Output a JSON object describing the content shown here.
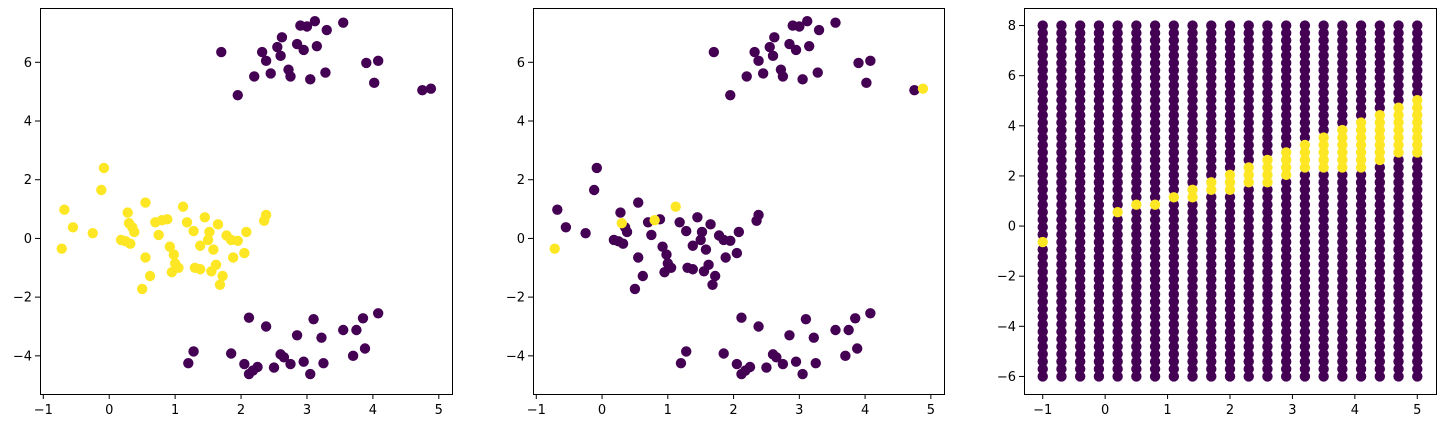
{
  "colors": {
    "class_0": "#440154",
    "class_1": "#fde725"
  },
  "chart_data": [
    {
      "type": "scatter",
      "xlim": [
        -1.05,
        5.2
      ],
      "ylim": [
        -5.3,
        7.85
      ],
      "xticks": [
        -1,
        0,
        1,
        2,
        3,
        4,
        5
      ],
      "yticks": [
        -4,
        -2,
        0,
        2,
        4,
        6
      ],
      "grid": false,
      "points": [
        {
          "x": 1.7,
          "y": 6.35,
          "c": 0
        },
        {
          "x": 1.95,
          "y": 4.88,
          "c": 0
        },
        {
          "x": 2.2,
          "y": 5.52,
          "c": 0
        },
        {
          "x": 2.32,
          "y": 6.35,
          "c": 0
        },
        {
          "x": 2.38,
          "y": 6.05,
          "c": 0
        },
        {
          "x": 2.45,
          "y": 5.62,
          "c": 0
        },
        {
          "x": 2.55,
          "y": 6.52,
          "c": 0
        },
        {
          "x": 2.6,
          "y": 6.22,
          "c": 0
        },
        {
          "x": 2.62,
          "y": 6.85,
          "c": 0
        },
        {
          "x": 2.72,
          "y": 5.75,
          "c": 0
        },
        {
          "x": 2.75,
          "y": 5.52,
          "c": 0
        },
        {
          "x": 2.85,
          "y": 6.62,
          "c": 0
        },
        {
          "x": 2.9,
          "y": 7.25,
          "c": 0
        },
        {
          "x": 2.95,
          "y": 6.42,
          "c": 0
        },
        {
          "x": 3.0,
          "y": 7.22,
          "c": 0
        },
        {
          "x": 3.05,
          "y": 5.42,
          "c": 0
        },
        {
          "x": 3.12,
          "y": 7.4,
          "c": 0
        },
        {
          "x": 3.15,
          "y": 6.55,
          "c": 0
        },
        {
          "x": 3.28,
          "y": 5.65,
          "c": 0
        },
        {
          "x": 3.3,
          "y": 7.1,
          "c": 0
        },
        {
          "x": 3.55,
          "y": 7.35,
          "c": 0
        },
        {
          "x": 3.9,
          "y": 5.98,
          "c": 0
        },
        {
          "x": 4.02,
          "y": 5.3,
          "c": 0
        },
        {
          "x": 4.08,
          "y": 6.05,
          "c": 0
        },
        {
          "x": 4.75,
          "y": 5.05,
          "c": 0
        },
        {
          "x": 4.88,
          "y": 5.1,
          "c": 0
        },
        {
          "x": 1.2,
          "y": -4.25,
          "c": 0
        },
        {
          "x": 1.28,
          "y": -3.85,
          "c": 0
        },
        {
          "x": 1.85,
          "y": -3.92,
          "c": 0
        },
        {
          "x": 2.05,
          "y": -4.28,
          "c": 0
        },
        {
          "x": 2.12,
          "y": -2.7,
          "c": 0
        },
        {
          "x": 2.12,
          "y": -4.62,
          "c": 0
        },
        {
          "x": 2.18,
          "y": -4.5,
          "c": 0
        },
        {
          "x": 2.25,
          "y": -4.38,
          "c": 0
        },
        {
          "x": 2.38,
          "y": -3.0,
          "c": 0
        },
        {
          "x": 2.5,
          "y": -4.4,
          "c": 0
        },
        {
          "x": 2.6,
          "y": -3.95,
          "c": 0
        },
        {
          "x": 2.65,
          "y": -4.05,
          "c": 0
        },
        {
          "x": 2.75,
          "y": -4.28,
          "c": 0
        },
        {
          "x": 2.85,
          "y": -3.3,
          "c": 0
        },
        {
          "x": 2.95,
          "y": -4.2,
          "c": 0
        },
        {
          "x": 3.05,
          "y": -4.62,
          "c": 0
        },
        {
          "x": 3.1,
          "y": -2.75,
          "c": 0
        },
        {
          "x": 3.22,
          "y": -3.38,
          "c": 0
        },
        {
          "x": 3.25,
          "y": -4.25,
          "c": 0
        },
        {
          "x": 3.55,
          "y": -3.12,
          "c": 0
        },
        {
          "x": 3.7,
          "y": -4.0,
          "c": 0
        },
        {
          "x": 3.75,
          "y": -3.12,
          "c": 0
        },
        {
          "x": 3.85,
          "y": -2.72,
          "c": 0
        },
        {
          "x": 3.88,
          "y": -3.75,
          "c": 0
        },
        {
          "x": 4.08,
          "y": -2.55,
          "c": 0
        },
        {
          "x": -0.72,
          "y": -0.35,
          "c": 1
        },
        {
          "x": -0.68,
          "y": 0.98,
          "c": 1
        },
        {
          "x": -0.55,
          "y": 0.38,
          "c": 1
        },
        {
          "x": -0.25,
          "y": 0.18,
          "c": 1
        },
        {
          "x": -0.12,
          "y": 1.65,
          "c": 1
        },
        {
          "x": -0.08,
          "y": 2.4,
          "c": 1
        },
        {
          "x": 0.18,
          "y": -0.05,
          "c": 1
        },
        {
          "x": 0.25,
          "y": -0.1,
          "c": 1
        },
        {
          "x": 0.28,
          "y": 0.88,
          "c": 1
        },
        {
          "x": 0.3,
          "y": 0.52,
          "c": 1
        },
        {
          "x": 0.32,
          "y": -0.18,
          "c": 1
        },
        {
          "x": 0.35,
          "y": 0.38,
          "c": 1
        },
        {
          "x": 0.38,
          "y": 0.22,
          "c": 1
        },
        {
          "x": 0.5,
          "y": -1.72,
          "c": 1
        },
        {
          "x": 0.55,
          "y": -0.65,
          "c": 1
        },
        {
          "x": 0.55,
          "y": 1.22,
          "c": 1
        },
        {
          "x": 0.62,
          "y": -1.28,
          "c": 1
        },
        {
          "x": 0.7,
          "y": 0.55,
          "c": 1
        },
        {
          "x": 0.75,
          "y": 0.12,
          "c": 1
        },
        {
          "x": 0.8,
          "y": 0.62,
          "c": 1
        },
        {
          "x": 0.88,
          "y": 0.65,
          "c": 1
        },
        {
          "x": 0.92,
          "y": -0.28,
          "c": 1
        },
        {
          "x": 0.95,
          "y": -1.15,
          "c": 1
        },
        {
          "x": 0.98,
          "y": -0.55,
          "c": 1
        },
        {
          "x": 1.0,
          "y": -0.85,
          "c": 1
        },
        {
          "x": 1.05,
          "y": -1.0,
          "c": 1
        },
        {
          "x": 1.12,
          "y": 1.08,
          "c": 1
        },
        {
          "x": 1.18,
          "y": 0.55,
          "c": 1
        },
        {
          "x": 1.28,
          "y": 0.25,
          "c": 1
        },
        {
          "x": 1.3,
          "y": -1.0,
          "c": 1
        },
        {
          "x": 1.38,
          "y": -1.05,
          "c": 1
        },
        {
          "x": 1.38,
          "y": -0.25,
          "c": 1
        },
        {
          "x": 1.45,
          "y": 0.72,
          "c": 1
        },
        {
          "x": 1.5,
          "y": -0.05,
          "c": 1
        },
        {
          "x": 1.52,
          "y": 0.22,
          "c": 1
        },
        {
          "x": 1.55,
          "y": -1.12,
          "c": 1
        },
        {
          "x": 1.58,
          "y": -0.38,
          "c": 1
        },
        {
          "x": 1.62,
          "y": -0.9,
          "c": 1
        },
        {
          "x": 1.65,
          "y": 0.48,
          "c": 1
        },
        {
          "x": 1.68,
          "y": -1.58,
          "c": 1
        },
        {
          "x": 1.72,
          "y": -1.28,
          "c": 1
        },
        {
          "x": 1.78,
          "y": 0.1,
          "c": 1
        },
        {
          "x": 1.85,
          "y": -0.05,
          "c": 1
        },
        {
          "x": 1.88,
          "y": -0.65,
          "c": 1
        },
        {
          "x": 1.95,
          "y": -0.08,
          "c": 1
        },
        {
          "x": 2.05,
          "y": -0.5,
          "c": 1
        },
        {
          "x": 2.08,
          "y": 0.22,
          "c": 1
        },
        {
          "x": 2.35,
          "y": 0.6,
          "c": 1
        },
        {
          "x": 2.38,
          "y": 0.8,
          "c": 1
        }
      ]
    },
    {
      "type": "scatter",
      "xlim": [
        -1.05,
        5.2
      ],
      "ylim": [
        -5.3,
        7.85
      ],
      "xticks": [
        -1,
        0,
        1,
        2,
        3,
        4,
        5
      ],
      "yticks": [
        -4,
        -2,
        0,
        2,
        4,
        6
      ],
      "grid": false,
      "points": [
        {
          "x": 1.7,
          "y": 6.35,
          "c": 0
        },
        {
          "x": 1.95,
          "y": 4.88,
          "c": 0
        },
        {
          "x": 2.2,
          "y": 5.52,
          "c": 0
        },
        {
          "x": 2.32,
          "y": 6.35,
          "c": 0
        },
        {
          "x": 2.38,
          "y": 6.05,
          "c": 0
        },
        {
          "x": 2.45,
          "y": 5.62,
          "c": 0
        },
        {
          "x": 2.55,
          "y": 6.52,
          "c": 0
        },
        {
          "x": 2.6,
          "y": 6.22,
          "c": 0
        },
        {
          "x": 2.62,
          "y": 6.85,
          "c": 0
        },
        {
          "x": 2.72,
          "y": 5.75,
          "c": 0
        },
        {
          "x": 2.75,
          "y": 5.52,
          "c": 0
        },
        {
          "x": 2.85,
          "y": 6.62,
          "c": 0
        },
        {
          "x": 2.9,
          "y": 7.25,
          "c": 0
        },
        {
          "x": 2.95,
          "y": 6.42,
          "c": 0
        },
        {
          "x": 3.0,
          "y": 7.22,
          "c": 0
        },
        {
          "x": 3.05,
          "y": 5.42,
          "c": 0
        },
        {
          "x": 3.12,
          "y": 7.4,
          "c": 0
        },
        {
          "x": 3.15,
          "y": 6.55,
          "c": 0
        },
        {
          "x": 3.28,
          "y": 5.65,
          "c": 0
        },
        {
          "x": 3.3,
          "y": 7.1,
          "c": 0
        },
        {
          "x": 3.55,
          "y": 7.35,
          "c": 0
        },
        {
          "x": 3.9,
          "y": 5.98,
          "c": 0
        },
        {
          "x": 4.02,
          "y": 5.3,
          "c": 0
        },
        {
          "x": 4.08,
          "y": 6.05,
          "c": 0
        },
        {
          "x": 4.75,
          "y": 5.05,
          "c": 0
        },
        {
          "x": 4.88,
          "y": 5.1,
          "c": 1
        },
        {
          "x": 1.2,
          "y": -4.25,
          "c": 0
        },
        {
          "x": 1.28,
          "y": -3.85,
          "c": 0
        },
        {
          "x": 1.85,
          "y": -3.92,
          "c": 0
        },
        {
          "x": 2.05,
          "y": -4.28,
          "c": 0
        },
        {
          "x": 2.12,
          "y": -2.7,
          "c": 0
        },
        {
          "x": 2.12,
          "y": -4.62,
          "c": 0
        },
        {
          "x": 2.18,
          "y": -4.5,
          "c": 0
        },
        {
          "x": 2.25,
          "y": -4.38,
          "c": 0
        },
        {
          "x": 2.38,
          "y": -3.0,
          "c": 0
        },
        {
          "x": 2.5,
          "y": -4.4,
          "c": 0
        },
        {
          "x": 2.6,
          "y": -3.95,
          "c": 0
        },
        {
          "x": 2.65,
          "y": -4.05,
          "c": 0
        },
        {
          "x": 2.75,
          "y": -4.28,
          "c": 0
        },
        {
          "x": 2.85,
          "y": -3.3,
          "c": 0
        },
        {
          "x": 2.95,
          "y": -4.2,
          "c": 0
        },
        {
          "x": 3.05,
          "y": -4.62,
          "c": 0
        },
        {
          "x": 3.1,
          "y": -2.75,
          "c": 0
        },
        {
          "x": 3.22,
          "y": -3.38,
          "c": 0
        },
        {
          "x": 3.25,
          "y": -4.25,
          "c": 0
        },
        {
          "x": 3.55,
          "y": -3.12,
          "c": 0
        },
        {
          "x": 3.7,
          "y": -4.0,
          "c": 0
        },
        {
          "x": 3.75,
          "y": -3.12,
          "c": 0
        },
        {
          "x": 3.85,
          "y": -2.72,
          "c": 0
        },
        {
          "x": 3.88,
          "y": -3.75,
          "c": 0
        },
        {
          "x": 4.08,
          "y": -2.55,
          "c": 0
        },
        {
          "x": -0.72,
          "y": -0.35,
          "c": 1
        },
        {
          "x": -0.68,
          "y": 0.98,
          "c": 0
        },
        {
          "x": -0.55,
          "y": 0.38,
          "c": 0
        },
        {
          "x": -0.25,
          "y": 0.18,
          "c": 0
        },
        {
          "x": -0.12,
          "y": 1.65,
          "c": 0
        },
        {
          "x": -0.08,
          "y": 2.4,
          "c": 0
        },
        {
          "x": 0.18,
          "y": -0.05,
          "c": 0
        },
        {
          "x": 0.25,
          "y": -0.1,
          "c": 0
        },
        {
          "x": 0.28,
          "y": 0.88,
          "c": 0
        },
        {
          "x": 0.3,
          "y": 0.52,
          "c": 1
        },
        {
          "x": 0.32,
          "y": -0.18,
          "c": 0
        },
        {
          "x": 0.35,
          "y": 0.38,
          "c": 0
        },
        {
          "x": 0.38,
          "y": 0.22,
          "c": 0
        },
        {
          "x": 0.5,
          "y": -1.72,
          "c": 0
        },
        {
          "x": 0.55,
          "y": -0.65,
          "c": 0
        },
        {
          "x": 0.55,
          "y": 1.22,
          "c": 0
        },
        {
          "x": 0.62,
          "y": -1.28,
          "c": 0
        },
        {
          "x": 0.7,
          "y": 0.55,
          "c": 0
        },
        {
          "x": 0.75,
          "y": 0.12,
          "c": 0
        },
        {
          "x": 0.8,
          "y": 0.62,
          "c": 1
        },
        {
          "x": 0.88,
          "y": 0.65,
          "c": 0
        },
        {
          "x": 0.92,
          "y": -0.28,
          "c": 0
        },
        {
          "x": 0.95,
          "y": -1.15,
          "c": 0
        },
        {
          "x": 0.98,
          "y": -0.55,
          "c": 0
        },
        {
          "x": 1.0,
          "y": -0.85,
          "c": 0
        },
        {
          "x": 1.05,
          "y": -1.0,
          "c": 0
        },
        {
          "x": 1.12,
          "y": 1.08,
          "c": 1
        },
        {
          "x": 1.18,
          "y": 0.55,
          "c": 0
        },
        {
          "x": 1.28,
          "y": 0.25,
          "c": 0
        },
        {
          "x": 1.3,
          "y": -1.0,
          "c": 0
        },
        {
          "x": 1.38,
          "y": -1.05,
          "c": 0
        },
        {
          "x": 1.38,
          "y": -0.25,
          "c": 0
        },
        {
          "x": 1.45,
          "y": 0.72,
          "c": 0
        },
        {
          "x": 1.5,
          "y": -0.05,
          "c": 0
        },
        {
          "x": 1.52,
          "y": 0.22,
          "c": 0
        },
        {
          "x": 1.55,
          "y": -1.12,
          "c": 0
        },
        {
          "x": 1.58,
          "y": -0.38,
          "c": 0
        },
        {
          "x": 1.62,
          "y": -0.9,
          "c": 0
        },
        {
          "x": 1.65,
          "y": 0.48,
          "c": 0
        },
        {
          "x": 1.68,
          "y": -1.58,
          "c": 0
        },
        {
          "x": 1.72,
          "y": -1.28,
          "c": 0
        },
        {
          "x": 1.78,
          "y": 0.1,
          "c": 0
        },
        {
          "x": 1.85,
          "y": -0.05,
          "c": 0
        },
        {
          "x": 1.88,
          "y": -0.65,
          "c": 0
        },
        {
          "x": 1.95,
          "y": -0.08,
          "c": 0
        },
        {
          "x": 2.05,
          "y": -0.5,
          "c": 0
        },
        {
          "x": 2.08,
          "y": 0.22,
          "c": 0
        },
        {
          "x": 2.35,
          "y": 0.6,
          "c": 0
        },
        {
          "x": 2.38,
          "y": 0.8,
          "c": 0
        }
      ]
    },
    {
      "type": "scatter",
      "xlim": [
        -1.3,
        5.3
      ],
      "ylim": [
        -6.7,
        8.7
      ],
      "xticks": [
        -1,
        0,
        1,
        2,
        3,
        4,
        5
      ],
      "yticks": [
        -6,
        -4,
        -2,
        0,
        2,
        4,
        6,
        8
      ],
      "grid": false,
      "grid_points": {
        "x": [
          -1.0,
          -0.7,
          -0.4,
          -0.1,
          0.2,
          0.5,
          0.8,
          1.1,
          1.4,
          1.7,
          2.0,
          2.3,
          2.6,
          2.9,
          3.2,
          3.5,
          3.8,
          4.1,
          4.4,
          4.7,
          5.0
        ],
        "y_start": -6.0,
        "y_end": 8.0,
        "y_count": 48,
        "class_1_ranges": [
          [
            -0.9,
            -0.4
          ],
          [
            -0.6,
            -0.4
          ],
          null,
          null,
          [
            0.3,
            0.6
          ],
          [
            0.6,
            0.9
          ],
          [
            0.6,
            1.1
          ],
          [
            0.9,
            1.4
          ],
          [
            0.9,
            1.7
          ],
          [
            1.2,
            2.0
          ],
          [
            1.2,
            2.3
          ],
          [
            1.5,
            2.6
          ],
          [
            1.5,
            2.9
          ],
          [
            1.8,
            3.2
          ],
          [
            2.1,
            3.5
          ],
          [
            2.1,
            3.8
          ],
          [
            2.3,
            4.1
          ],
          [
            2.3,
            4.3
          ],
          [
            2.6,
            4.6
          ],
          [
            2.9,
            4.9
          ],
          [
            2.9,
            5.2
          ]
        ]
      }
    }
  ]
}
